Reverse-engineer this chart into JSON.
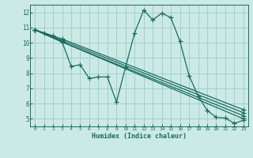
{
  "xlabel": "Humidex (Indice chaleur)",
  "bg_color": "#cceae5",
  "grid_color": "#99cccc",
  "line_color": "#1a6b60",
  "xlim": [
    -0.5,
    23.5
  ],
  "ylim": [
    4.5,
    12.5
  ],
  "xticks": [
    0,
    1,
    2,
    3,
    4,
    5,
    6,
    7,
    8,
    9,
    10,
    11,
    12,
    13,
    14,
    15,
    16,
    17,
    18,
    19,
    20,
    21,
    22,
    23
  ],
  "yticks": [
    5,
    6,
    7,
    8,
    9,
    10,
    11,
    12
  ],
  "line_main": {
    "x": [
      0,
      1,
      2,
      3,
      4,
      5,
      6,
      7,
      8,
      9,
      10,
      11,
      12,
      13,
      14,
      15,
      16,
      17,
      18,
      19,
      20,
      21,
      22,
      23
    ],
    "y": [
      10.85,
      10.65,
      10.45,
      10.05,
      8.45,
      8.55,
      7.65,
      7.75,
      7.75,
      6.1,
      8.4,
      10.65,
      12.15,
      11.5,
      11.95,
      11.65,
      10.1,
      7.85,
      6.5,
      5.55,
      5.1,
      5.05,
      4.7,
      4.9
    ]
  },
  "straight_lines": [
    {
      "x": [
        0,
        3,
        23
      ],
      "y": [
        10.85,
        10.05,
        5.0
      ]
    },
    {
      "x": [
        0,
        3,
        23
      ],
      "y": [
        10.85,
        10.05,
        5.2
      ]
    },
    {
      "x": [
        0,
        3,
        23
      ],
      "y": [
        10.85,
        10.15,
        5.4
      ]
    },
    {
      "x": [
        0,
        3,
        23
      ],
      "y": [
        10.85,
        10.25,
        5.6
      ]
    }
  ]
}
